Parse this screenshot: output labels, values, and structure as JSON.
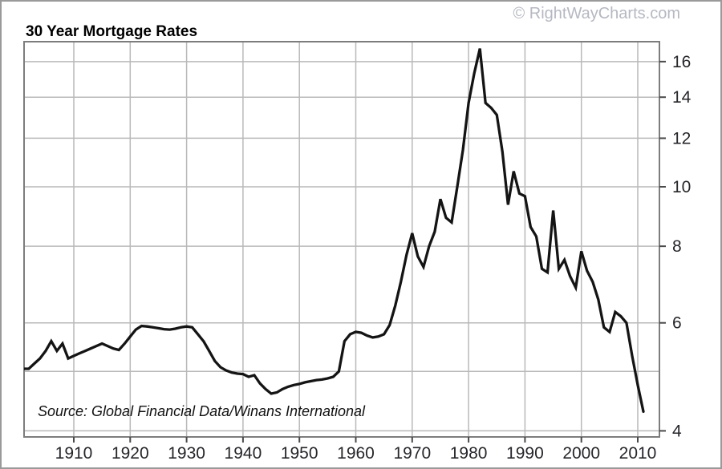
{
  "watermark": "© RightWayCharts.com",
  "chart_data": {
    "type": "line",
    "title": "30 Year Mortgage Rates",
    "source_note": "Source: Global Financial Data/Winans International",
    "series_name": "30 Year Mortgage Rate (%)",
    "y_scale": "log",
    "y_axis_side": "right",
    "grid": true,
    "xlim": [
      1901,
      2014
    ],
    "ylim": [
      3.85,
      17.25
    ],
    "x_ticks": [
      1910,
      1920,
      1930,
      1940,
      1950,
      1960,
      1970,
      1980,
      1990,
      2000,
      2010
    ],
    "y_ticks_labeled": [
      4,
      6,
      8,
      10,
      12,
      14,
      16
    ],
    "y_gridlines": [
      4,
      5,
      6,
      8,
      10,
      12,
      14,
      16
    ],
    "x": [
      1901,
      1902,
      1903,
      1904,
      1905,
      1906,
      1907,
      1908,
      1909,
      1910,
      1911,
      1912,
      1913,
      1914,
      1915,
      1916,
      1917,
      1918,
      1919,
      1920,
      1921,
      1922,
      1923,
      1924,
      1925,
      1926,
      1927,
      1928,
      1929,
      1930,
      1931,
      1932,
      1933,
      1934,
      1935,
      1936,
      1937,
      1938,
      1939,
      1940,
      1941,
      1942,
      1943,
      1944,
      1945,
      1946,
      1947,
      1948,
      1949,
      1950,
      1951,
      1952,
      1953,
      1954,
      1955,
      1956,
      1957,
      1958,
      1959,
      1960,
      1961,
      1962,
      1963,
      1964,
      1965,
      1966,
      1967,
      1968,
      1969,
      1970,
      1971,
      1972,
      1973,
      1974,
      1975,
      1976,
      1977,
      1978,
      1979,
      1980,
      1981,
      1982,
      1983,
      1984,
      1985,
      1986,
      1987,
      1988,
      1989,
      1990,
      1991,
      1992,
      1993,
      1994,
      1995,
      1996,
      1997,
      1998,
      1999,
      2000,
      2001,
      2002,
      2003,
      2004,
      2005,
      2006,
      2007,
      2008,
      2009,
      2010,
      2011
    ],
    "values": [
      5.05,
      5.05,
      5.15,
      5.25,
      5.4,
      5.6,
      5.4,
      5.55,
      5.25,
      5.3,
      5.35,
      5.4,
      5.45,
      5.5,
      5.55,
      5.5,
      5.45,
      5.42,
      5.55,
      5.7,
      5.85,
      5.93,
      5.92,
      5.9,
      5.88,
      5.86,
      5.85,
      5.87,
      5.9,
      5.92,
      5.9,
      5.75,
      5.6,
      5.4,
      5.2,
      5.08,
      5.02,
      4.98,
      4.96,
      4.95,
      4.9,
      4.93,
      4.78,
      4.68,
      4.6,
      4.62,
      4.68,
      4.72,
      4.75,
      4.77,
      4.8,
      4.82,
      4.84,
      4.85,
      4.87,
      4.9,
      5.0,
      5.6,
      5.75,
      5.8,
      5.78,
      5.72,
      5.68,
      5.7,
      5.75,
      5.95,
      6.4,
      7.0,
      7.75,
      8.4,
      7.7,
      7.4,
      8.0,
      8.45,
      9.55,
      8.9,
      8.75,
      10.0,
      11.5,
      13.7,
      15.3,
      16.8,
      13.7,
      13.45,
      13.1,
      11.4,
      9.35,
      10.6,
      9.75,
      9.65,
      8.6,
      8.3,
      7.35,
      7.25,
      9.15,
      7.35,
      7.6,
      7.15,
      6.85,
      7.85,
      7.3,
      7.0,
      6.55,
      5.9,
      5.8,
      6.25,
      6.15,
      6.0,
      5.3,
      4.75,
      4.3
    ],
    "colors": {
      "line": "#141414",
      "grid": "#b9b9b9",
      "axis": "#7d7d7d",
      "tick": "#4a4a4a",
      "text": "#26262b",
      "watermark": "#b6b8c2"
    }
  }
}
